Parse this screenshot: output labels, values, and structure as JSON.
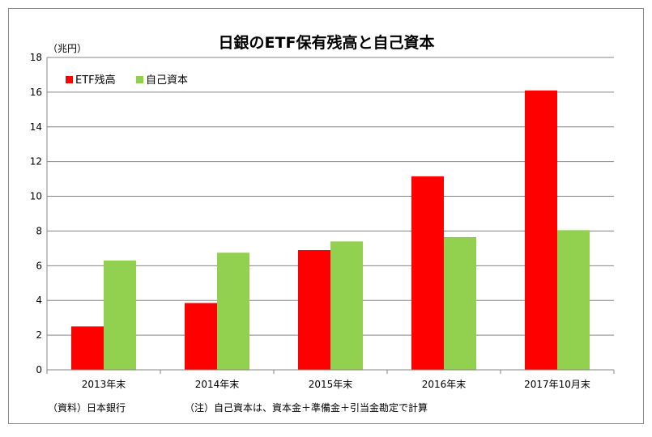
{
  "chart_data": {
    "type": "bar",
    "title": "日銀のETF保有残高と自己資本",
    "unit_label": "（兆円）",
    "categories": [
      "2013年末",
      "2014年末",
      "2015年末",
      "2016年末",
      "2017年10月末"
    ],
    "series": [
      {
        "name": "ETF残高",
        "color": "#ff0000",
        "values": [
          2.5,
          3.85,
          6.9,
          11.15,
          16.1
        ]
      },
      {
        "name": "自己資本",
        "color": "#92d050",
        "values": [
          6.3,
          6.75,
          7.4,
          7.65,
          8.05
        ]
      }
    ],
    "yticks": [
      0,
      2,
      4,
      6,
      8,
      10,
      12,
      14,
      16,
      18
    ],
    "ylim": [
      0,
      18
    ],
    "grid": true,
    "legend": "top-left"
  },
  "notes": {
    "source": "（資料）日本銀行",
    "remark": "（注）自己資本は、資本金＋準備金＋引当金勘定で計算"
  }
}
